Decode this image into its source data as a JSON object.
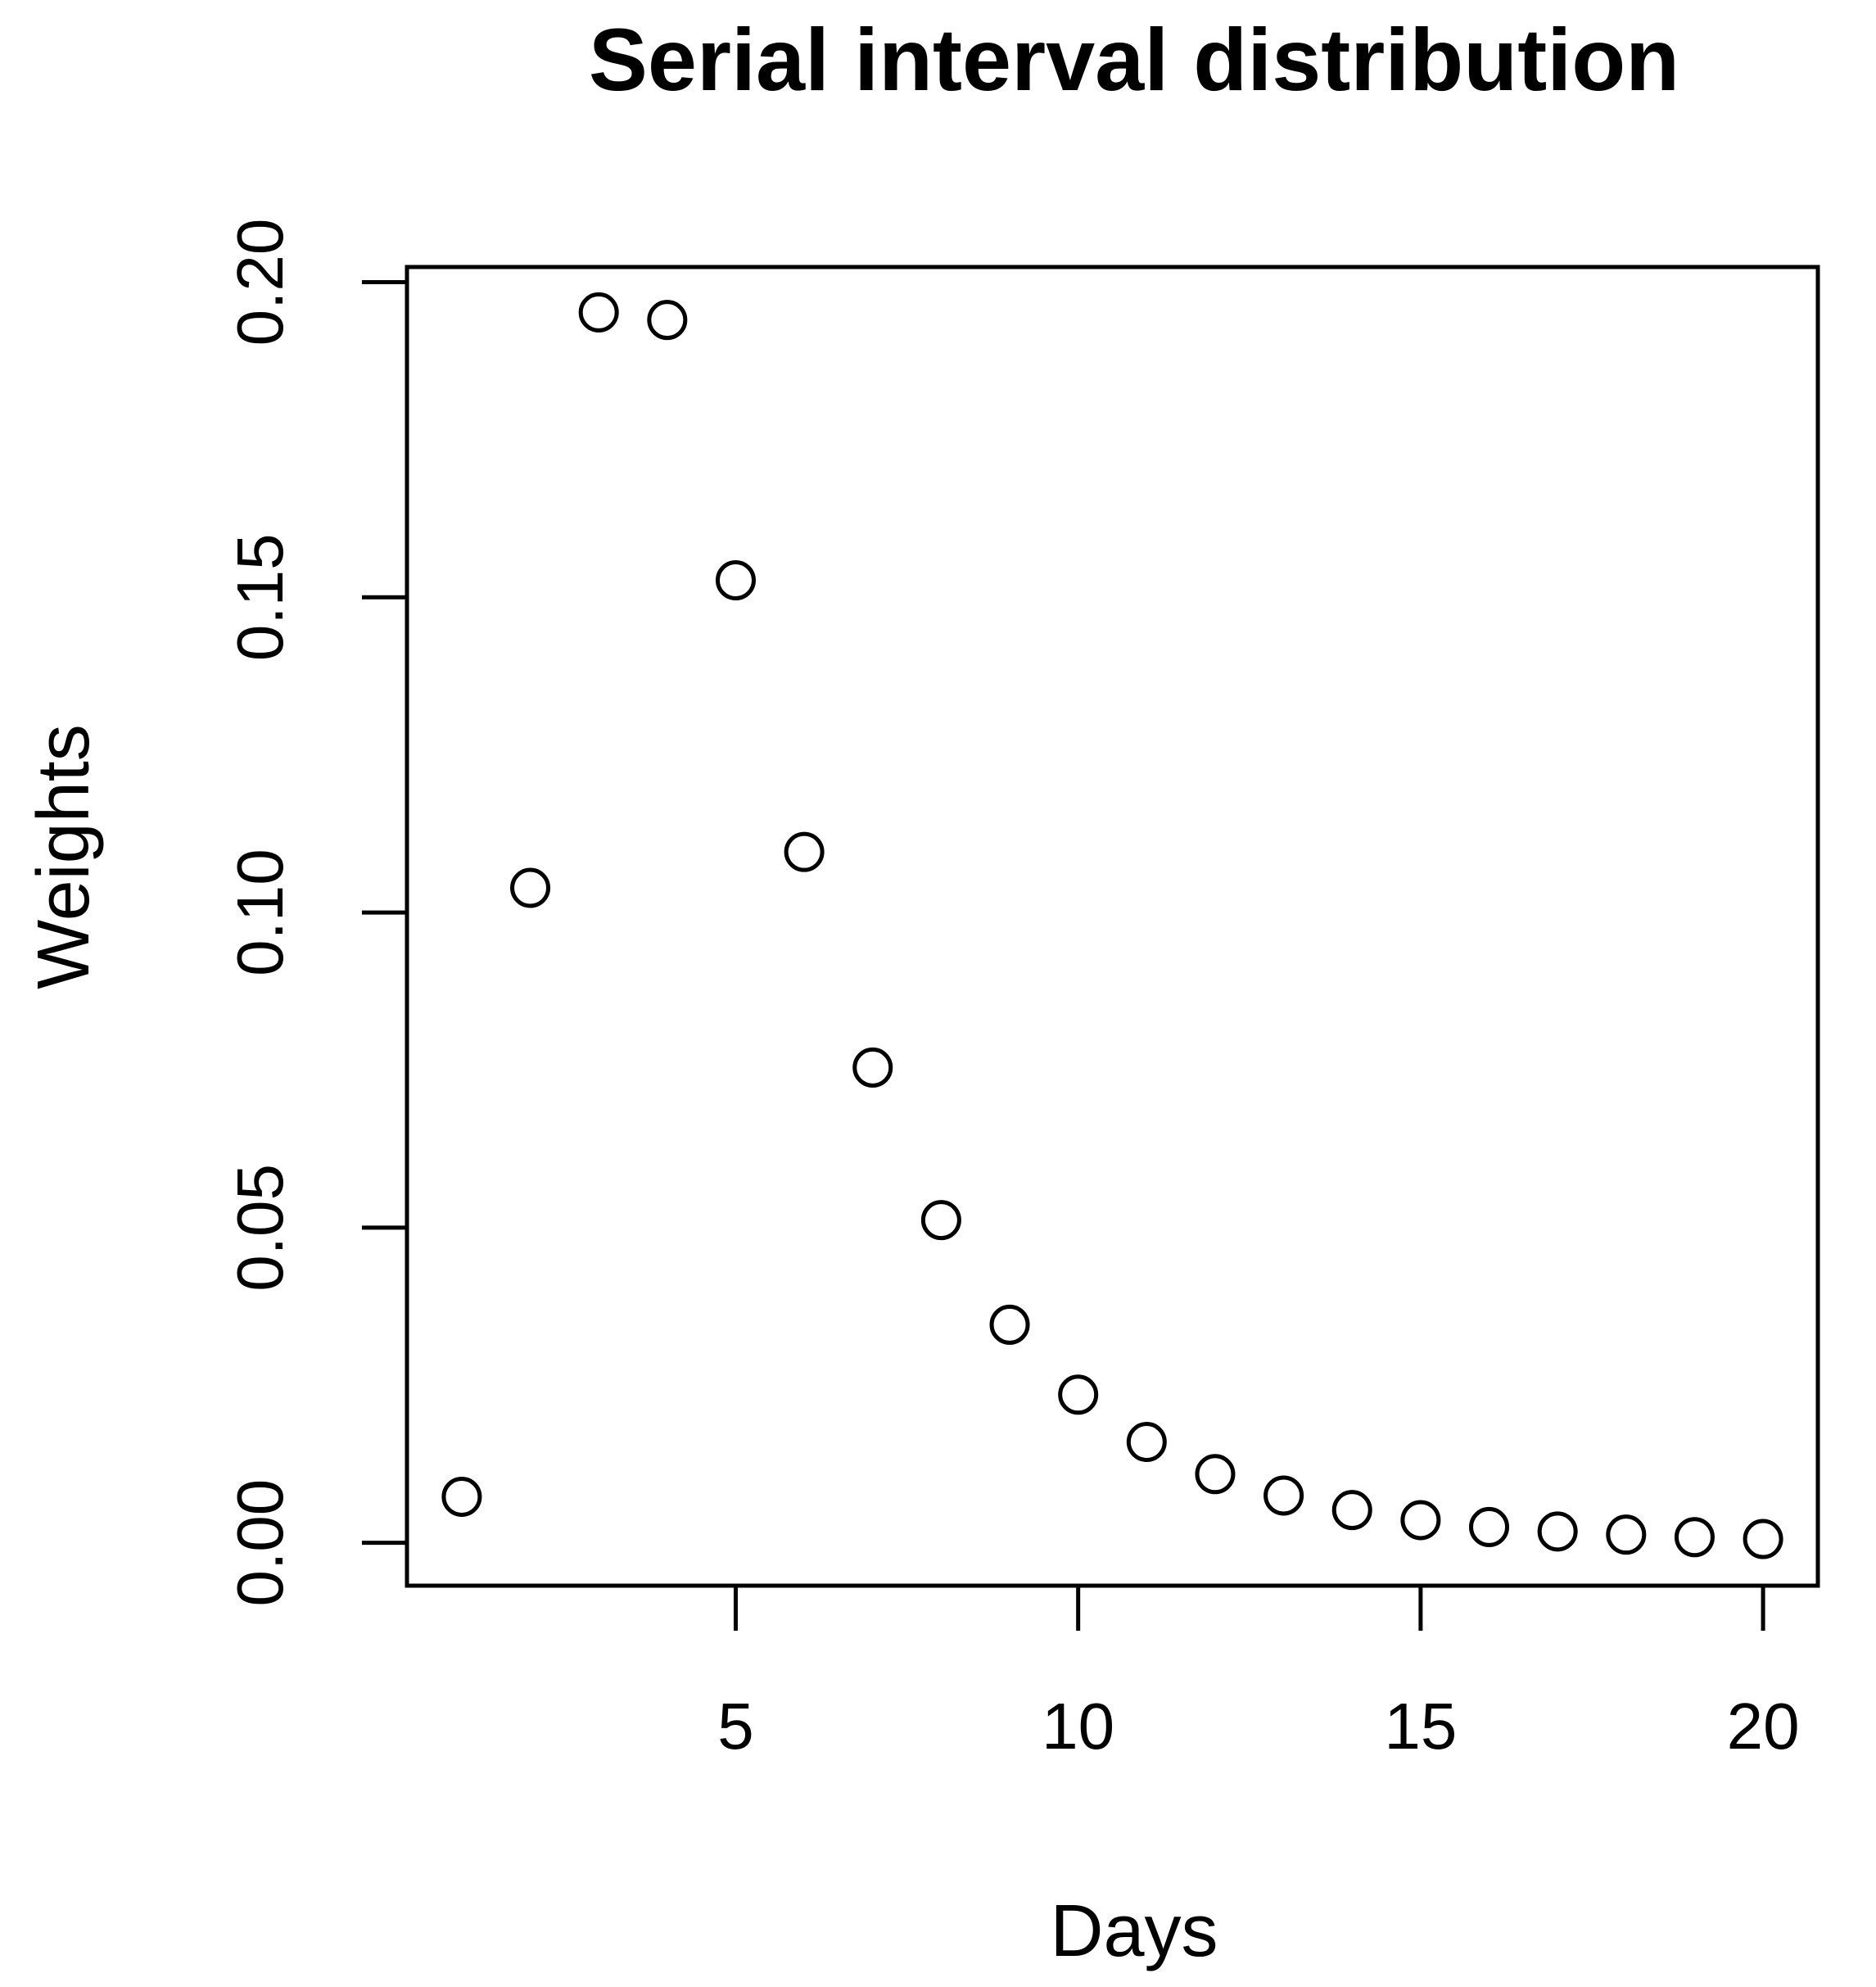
{
  "chart_data": {
    "type": "scatter",
    "title": "Serial interval distribution",
    "xlabel": "Days",
    "ylabel": "Weights",
    "xlim": [
      0.2,
      20.8
    ],
    "ylim": [
      -0.0068,
      0.2024
    ],
    "x_ticks": [
      5,
      10,
      15,
      20
    ],
    "y_ticks": [
      0.0,
      0.05,
      0.1,
      0.15,
      0.2
    ],
    "x_tick_labels": [
      "5",
      "10",
      "15",
      "20"
    ],
    "y_tick_labels": [
      "0.00",
      "0.05",
      "0.10",
      "0.15",
      "0.20"
    ],
    "grid": false,
    "marker": "open-circle",
    "points": [
      {
        "x": 1,
        "y": 0.0073
      },
      {
        "x": 2,
        "y": 0.1039
      },
      {
        "x": 3,
        "y": 0.1952
      },
      {
        "x": 4,
        "y": 0.194
      },
      {
        "x": 5,
        "y": 0.1527
      },
      {
        "x": 6,
        "y": 0.1096
      },
      {
        "x": 7,
        "y": 0.0754
      },
      {
        "x": 8,
        "y": 0.0512
      },
      {
        "x": 9,
        "y": 0.0346
      },
      {
        "x": 10,
        "y": 0.0235
      },
      {
        "x": 11,
        "y": 0.016
      },
      {
        "x": 12,
        "y": 0.0109
      },
      {
        "x": 13,
        "y": 0.0075
      },
      {
        "x": 14,
        "y": 0.0052
      },
      {
        "x": 15,
        "y": 0.0036
      },
      {
        "x": 16,
        "y": 0.0025
      },
      {
        "x": 17,
        "y": 0.0018
      },
      {
        "x": 18,
        "y": 0.0013
      },
      {
        "x": 19,
        "y": 0.0009
      },
      {
        "x": 20,
        "y": 0.0006
      }
    ]
  }
}
